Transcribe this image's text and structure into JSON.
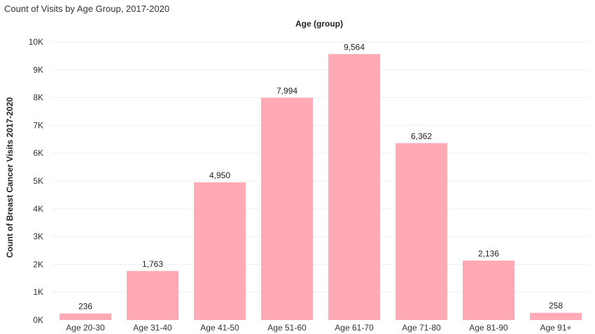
{
  "chart_data": {
    "type": "bar",
    "title": "Count of Visits by Age Group, 2017-2020",
    "xlabel": "Age (group)",
    "ylabel": "Count of Breast Cancer Visits 2017-2020",
    "categories": [
      "Age 20-30",
      "Age 31-40",
      "Age 41-50",
      "Age 51-60",
      "Age 61-70",
      "Age 71-80",
      "Age 81-90",
      "Age 91+"
    ],
    "values": [
      236,
      1763,
      4950,
      7994,
      9564,
      6362,
      2136,
      258
    ],
    "value_labels": [
      "236",
      "1,763",
      "4,950",
      "7,994",
      "9,564",
      "6,362",
      "2,136",
      "258"
    ],
    "ylim": [
      0,
      10000
    ],
    "yticks": [
      0,
      1000,
      2000,
      3000,
      4000,
      5000,
      6000,
      7000,
      8000,
      9000,
      10000
    ],
    "ytick_labels": [
      "0K",
      "1K",
      "2K",
      "3K",
      "4K",
      "5K",
      "6K",
      "7K",
      "8K",
      "9K",
      "10K"
    ],
    "grid": true,
    "bar_color": "#ffaab4",
    "grid_color": "#efefef"
  }
}
